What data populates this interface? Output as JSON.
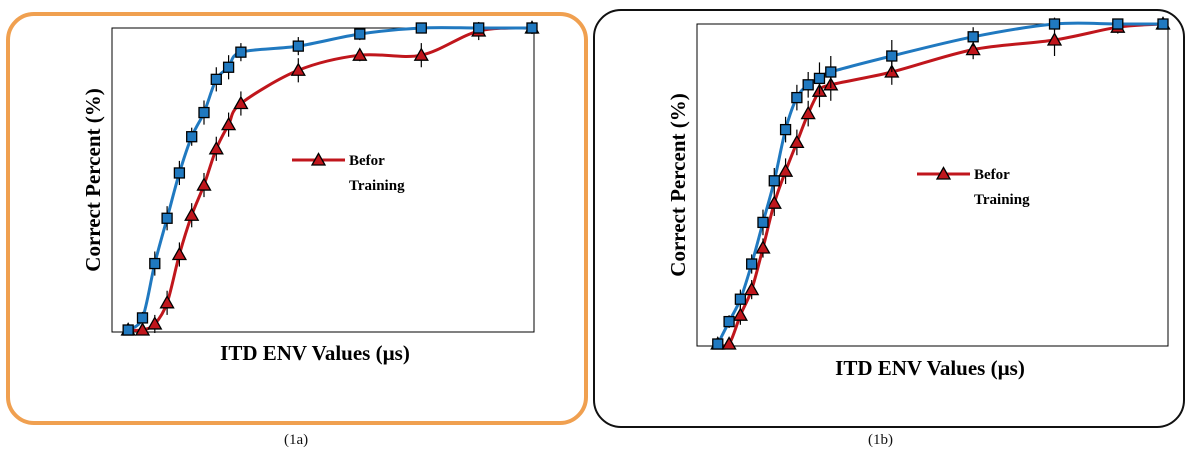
{
  "colors": {
    "before_training": "#c0161c",
    "after_training": "#2079c0",
    "panel_a_border": "#f0a050",
    "panel_b_border": "#111111"
  },
  "chart_data": [
    {
      "type": "line",
      "panel_caption": "(1a)",
      "xlabel": "ITD ENV Values (µs)",
      "ylabel": "Correct Percent (%)",
      "grid": false,
      "xlim": [
        0,
        1
      ],
      "ylim": [
        0,
        1
      ],
      "legend": {
        "placement": "center-right",
        "entries": [
          "Befor Training"
        ]
      },
      "series": [
        {
          "name": "Befor Training",
          "marker": "triangle",
          "color": "before_training",
          "x": [
            0.015,
            0.05,
            0.08,
            0.11,
            0.14,
            0.17,
            0.2,
            0.23,
            0.26,
            0.29,
            0.43,
            0.58,
            0.73,
            0.87,
            1.0
          ],
          "y": [
            0.0,
            0.0,
            0.02,
            0.09,
            0.25,
            0.38,
            0.48,
            0.6,
            0.68,
            0.75,
            0.86,
            0.91,
            0.91,
            0.99,
            1.0
          ],
          "err": [
            0.01,
            0.01,
            0.03,
            0.04,
            0.04,
            0.04,
            0.04,
            0.04,
            0.04,
            0.04,
            0.04,
            0.02,
            0.04,
            0.03,
            0.02
          ]
        },
        {
          "marker": "square",
          "color": "after_training",
          "x": [
            0.015,
            0.05,
            0.08,
            0.11,
            0.14,
            0.17,
            0.2,
            0.23,
            0.26,
            0.29,
            0.43,
            0.58,
            0.73,
            0.87,
            1.0
          ],
          "y": [
            0.0,
            0.04,
            0.22,
            0.37,
            0.52,
            0.64,
            0.72,
            0.83,
            0.87,
            0.92,
            0.94,
            0.98,
            1.0,
            1.0,
            1.0
          ],
          "err": [
            0.01,
            0.02,
            0.04,
            0.04,
            0.04,
            0.03,
            0.04,
            0.04,
            0.04,
            0.03,
            0.03,
            0.02,
            0.01,
            0.01,
            0.01
          ]
        }
      ]
    },
    {
      "type": "line",
      "panel_caption": "(1b)",
      "xlabel": "ITD ENV Values (µs)",
      "ylabel": "Correct Percent (%)",
      "grid": false,
      "xlim": [
        0,
        1
      ],
      "ylim": [
        0,
        1
      ],
      "legend": {
        "placement": "center-right",
        "entries": [
          "Befor Training"
        ]
      },
      "series": [
        {
          "name": "Befor Training",
          "marker": "triangle",
          "color": "before_training",
          "x": [
            0.015,
            0.04,
            0.065,
            0.09,
            0.115,
            0.14,
            0.165,
            0.19,
            0.215,
            0.24,
            0.265,
            0.4,
            0.58,
            0.76,
            0.9,
            1.0
          ],
          "y": [
            0.0,
            0.0,
            0.09,
            0.17,
            0.3,
            0.44,
            0.54,
            0.63,
            0.72,
            0.79,
            0.81,
            0.85,
            0.92,
            0.95,
            0.99,
            1.0
          ],
          "err": [
            0.01,
            0.01,
            0.03,
            0.03,
            0.03,
            0.04,
            0.04,
            0.04,
            0.04,
            0.05,
            0.05,
            0.04,
            0.03,
            0.05,
            0.02,
            0.01
          ]
        },
        {
          "marker": "square",
          "color": "after_training",
          "x": [
            0.015,
            0.04,
            0.065,
            0.09,
            0.115,
            0.14,
            0.165,
            0.19,
            0.215,
            0.24,
            0.265,
            0.4,
            0.58,
            0.76,
            0.9,
            1.0
          ],
          "y": [
            0.0,
            0.07,
            0.14,
            0.25,
            0.38,
            0.51,
            0.67,
            0.77,
            0.81,
            0.83,
            0.85,
            0.9,
            0.96,
            1.0,
            1.0,
            1.0
          ],
          "err": [
            0.01,
            0.02,
            0.03,
            0.03,
            0.04,
            0.04,
            0.04,
            0.04,
            0.04,
            0.05,
            0.05,
            0.05,
            0.03,
            0.02,
            0.01,
            0.01
          ]
        }
      ]
    }
  ]
}
